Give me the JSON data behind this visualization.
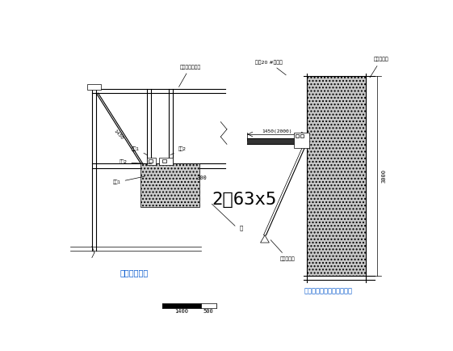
{
  "bg_color": "#ffffff",
  "line_color": "#000000",
  "blue_text_color": "#0055cc",
  "title1": "阳角部位详图",
  "title2": "阳角及剪力墙部位支撑详图",
  "label_2L63x5": "2☶63x5",
  "label_300": "300",
  "label_1400": "1400",
  "label_500": "500",
  "label_1450": "1450(2000)",
  "label_3000": "3000",
  "label_1430": "1430",
  "note_top": "及其工字颉固定",
  "note_bolt20": "螺栂20 #工字颉",
  "note_anchor_top": "支脚压结构",
  "note_anchor_bot": "支脚压结构",
  "note_mao": "锶",
  "note_lug1": "螺杆1",
  "note_lug2": "螺杆 2",
  "note_mu1": "螺母1",
  "note_mu2": "螺母 2"
}
